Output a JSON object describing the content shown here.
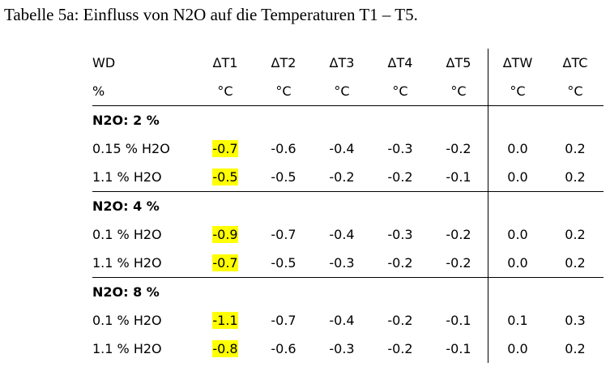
{
  "caption": "Tabelle 5a: Einfluss von N2O auf die Temperaturen T1 – T5.",
  "header": {
    "row1": [
      "WD",
      "ΔT1",
      "ΔT2",
      "ΔT3",
      "ΔT4",
      "ΔT5",
      "ΔTW",
      "ΔTC"
    ],
    "row2": [
      "%",
      "°C",
      "°C",
      "°C",
      "°C",
      "°C",
      "°C",
      "°C"
    ]
  },
  "groups": [
    {
      "label": "N2O: 2 %",
      "rows": [
        {
          "label": "0.15 % H2O",
          "values": [
            "-0.7",
            "-0.6",
            "-0.4",
            "-0.3",
            "-0.2",
            "0.0",
            "0.2"
          ]
        },
        {
          "label": "1.1 % H2O",
          "values": [
            "-0.5",
            "-0.5",
            "-0.2",
            "-0.2",
            "-0.1",
            "0.0",
            "0.2"
          ]
        }
      ]
    },
    {
      "label": "N2O: 4 %",
      "rows": [
        {
          "label": "0.1 % H2O",
          "values": [
            "-0.9",
            "-0.7",
            "-0.4",
            "-0.3",
            "-0.2",
            "0.0",
            "0.2"
          ]
        },
        {
          "label": "1.1 % H2O",
          "values": [
            "-0.7",
            "-0.5",
            "-0.3",
            "-0.2",
            "-0.2",
            "0.0",
            "0.2"
          ]
        }
      ]
    },
    {
      "label": "N2O: 8 %",
      "rows": [
        {
          "label": "0.1 % H2O",
          "values": [
            "-1.1",
            "-0.7",
            "-0.4",
            "-0.2",
            "-0.1",
            "0.1",
            "0.3"
          ]
        },
        {
          "label": "1.1 % H2O",
          "values": [
            "-0.8",
            "-0.6",
            "-0.3",
            "-0.2",
            "-0.1",
            "0.0",
            "0.2"
          ]
        }
      ]
    }
  ],
  "highlight_color": "#ffff00"
}
